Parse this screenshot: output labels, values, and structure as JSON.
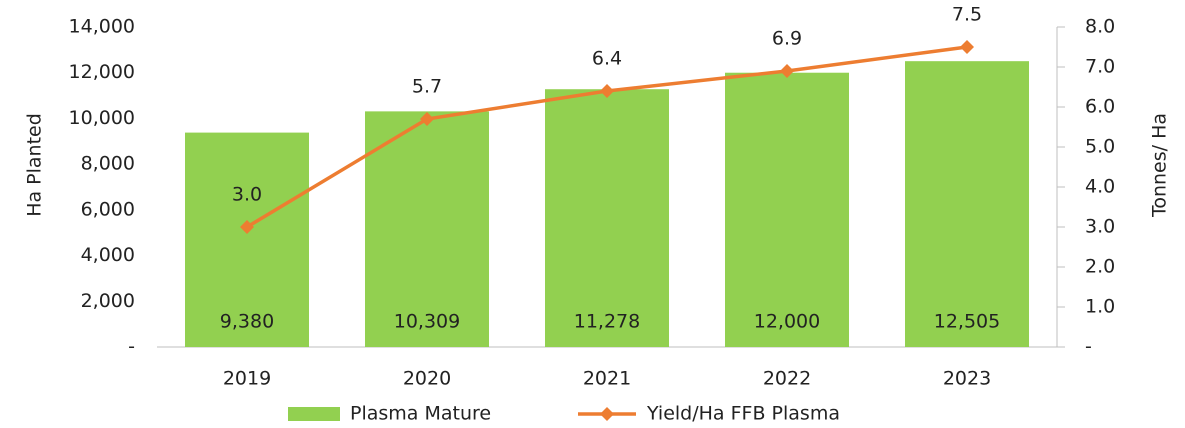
{
  "chart_data": {
    "type": "bar_line",
    "categories": [
      "2019",
      "2020",
      "2021",
      "2022",
      "2023"
    ],
    "series": [
      {
        "name": "Plasma Mature",
        "type": "bar",
        "axis": "y",
        "color": "#92d050",
        "values": [
          9380,
          10309,
          11278,
          12000,
          12505
        ],
        "value_labels": [
          "9,380",
          "10,309",
          "11,278",
          "12,000",
          "12,505"
        ]
      },
      {
        "name": "Yield/Ha FFB Plasma",
        "type": "line",
        "axis": "y2",
        "color": "#ed7d31",
        "values": [
          3.0,
          5.7,
          6.4,
          6.9,
          7.5
        ],
        "value_labels": [
          "3.0",
          "5.7",
          "6.4",
          "6.9",
          "7.5"
        ]
      }
    ],
    "ylabel": "Ha Planted",
    "y2label": "Tonnes/ Ha",
    "ylim": [
      0,
      14000
    ],
    "yticks": [
      {
        "value": 0,
        "label": "-"
      },
      {
        "value": 2000,
        "label": "2,000"
      },
      {
        "value": 4000,
        "label": "4,000"
      },
      {
        "value": 6000,
        "label": "6,000"
      },
      {
        "value": 8000,
        "label": "8,000"
      },
      {
        "value": 10000,
        "label": "10,000"
      },
      {
        "value": 12000,
        "label": "12,000"
      },
      {
        "value": 14000,
        "label": "14,000"
      }
    ],
    "y2lim": [
      0,
      8
    ],
    "y2ticks": [
      {
        "value": 0,
        "label": "-"
      },
      {
        "value": 1,
        "label": "1.0"
      },
      {
        "value": 2,
        "label": "2.0"
      },
      {
        "value": 3,
        "label": "3.0"
      },
      {
        "value": 4,
        "label": "4.0"
      },
      {
        "value": 5,
        "label": "5.0"
      },
      {
        "value": 6,
        "label": "6.0"
      },
      {
        "value": 7,
        "label": "7.0"
      },
      {
        "value": 8,
        "label": "8.0"
      }
    ],
    "grid": false,
    "legend": "bottom"
  }
}
